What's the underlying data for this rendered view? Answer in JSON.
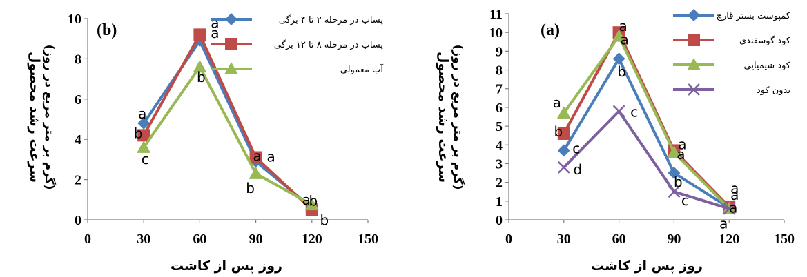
{
  "chart_data": [
    {
      "type": "line",
      "panel": "(b)",
      "xlabel": "روز پس از کاشت",
      "ylabel": "سرعت رشد محصول",
      "ylabel_unit": "(گرم بر متر مربع در روز)",
      "xlim": [
        0,
        150
      ],
      "ylim": [
        0,
        10
      ],
      "xticks": [
        0,
        30,
        60,
        90,
        120,
        150
      ],
      "yticks": [
        0,
        2,
        4,
        6,
        8,
        10
      ],
      "x_point_labels": [
        "30",
        "60",
        "90",
        "120"
      ],
      "legend_position": "top-right",
      "grid": false,
      "x": [
        30,
        60,
        90,
        120
      ],
      "series": [
        {
          "name": "پساب در مرحله ۲ تا ۴ برگی",
          "color": "#4A7EBB",
          "marker": "diamond",
          "values": [
            4.8,
            8.9,
            2.9,
            0.6
          ],
          "letters": [
            "a",
            "a",
            "a",
            "b"
          ]
        },
        {
          "name": "پساب در مرحله ۸ تا ۱۲ برگی",
          "color": "#BE4B48",
          "marker": "square",
          "values": [
            4.2,
            9.2,
            3.1,
            0.5
          ],
          "letters": [
            "b",
            "a",
            "a",
            "b"
          ]
        },
        {
          "name": "آب معمولی",
          "color": "#98B954",
          "marker": "triangle",
          "values": [
            3.6,
            7.6,
            2.3,
            0.75
          ],
          "letters": [
            "c",
            "b",
            "b",
            "a"
          ]
        }
      ]
    },
    {
      "type": "line",
      "panel": "(a)",
      "xlabel": "روز پس از کاشت",
      "ylabel": "سرعت رشد محصول",
      "ylabel_unit": "(گرم بر متر مربع در روز)",
      "xlim": [
        0,
        150
      ],
      "ylim": [
        0,
        11
      ],
      "xticks": [
        0,
        30,
        60,
        90,
        120,
        150
      ],
      "yticks": [
        0,
        1,
        2,
        3,
        4,
        5,
        6,
        7,
        8,
        9,
        10,
        11
      ],
      "x_point_labels": [
        "30",
        "60",
        "90",
        "120"
      ],
      "legend_position": "top-right",
      "grid": false,
      "x": [
        30,
        60,
        90,
        120
      ],
      "series": [
        {
          "name": "کمپوست بستر قارچ",
          "color": "#4A7EBB",
          "marker": "diamond",
          "values": [
            3.7,
            8.6,
            2.5,
            0.65
          ],
          "letters": [
            "c",
            "b",
            "b",
            "a"
          ]
        },
        {
          "name": "کود گوسفندی",
          "color": "#BE4B48",
          "marker": "square",
          "values": [
            4.6,
            10.0,
            3.7,
            0.7
          ],
          "letters": [
            "b",
            "a",
            "a",
            "a"
          ]
        },
        {
          "name": "کود شیمیایی",
          "color": "#98B954",
          "marker": "triangle",
          "values": [
            5.7,
            9.8,
            3.6,
            0.6
          ],
          "letters": [
            "a",
            "a",
            "a",
            "a"
          ]
        },
        {
          "name": "بدون کود",
          "color": "#7D60A0",
          "marker": "x",
          "values": [
            2.8,
            5.8,
            1.5,
            0.6
          ],
          "letters": [
            "d",
            "c",
            "c",
            "a"
          ]
        }
      ]
    }
  ]
}
